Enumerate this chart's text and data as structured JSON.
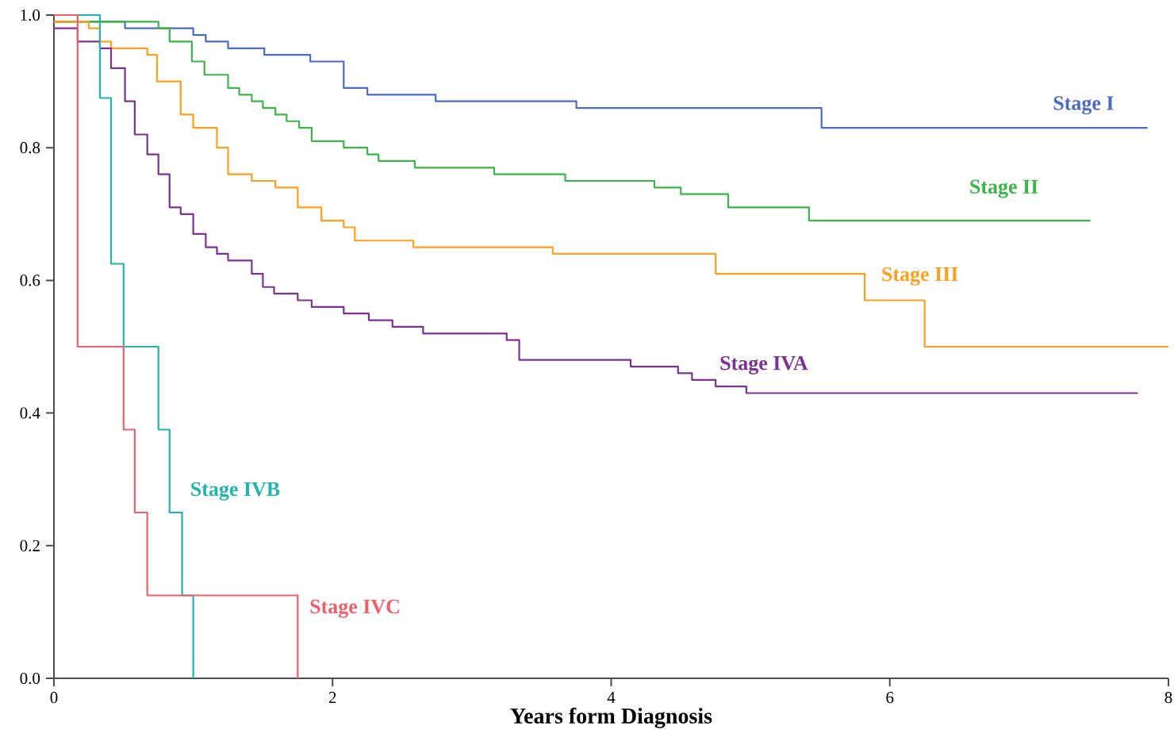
{
  "chart_data": {
    "type": "step",
    "xlabel": "Years form Diagnosis",
    "xlim": [
      0,
      8
    ],
    "ylim": [
      0,
      1
    ],
    "xticks": [
      0,
      2,
      4,
      6,
      8
    ],
    "yticks": [
      {
        "value": 0,
        "label": "0.0"
      },
      {
        "value": 0.2,
        "label": "0.2"
      },
      {
        "value": 0.4,
        "label": "0.4"
      },
      {
        "value": 0.6,
        "label": "0.6"
      },
      {
        "value": 0.8,
        "label": "0.8"
      },
      {
        "value": 1,
        "label": "1.0"
      }
    ],
    "grid": false,
    "series": [
      {
        "name": "Stage I",
        "color": "#4a6bbf",
        "x": [
          0,
          0.51,
          1.0,
          1.09,
          1.25,
          1.51,
          1.84,
          2.08,
          2.25,
          2.74,
          3.75,
          5.51,
          7.85
        ],
        "values": [
          0.99,
          0.98,
          0.97,
          0.96,
          0.95,
          0.94,
          0.93,
          0.89,
          0.88,
          0.87,
          0.86,
          0.83,
          0.83
        ]
      },
      {
        "name": "Stage II",
        "color": "#3cb44a",
        "x": [
          0,
          0.58,
          0.75,
          0.83,
          0.91,
          0.99,
          1.08,
          1.16,
          1.25,
          1.33,
          1.42,
          1.5,
          1.59,
          1.67,
          1.76,
          1.85,
          2.08,
          2.25,
          2.33,
          2.59,
          2.76,
          3.16,
          3.67,
          4.31,
          4.5,
          4.84,
          5.42,
          7.44
        ],
        "values": [
          0.99,
          0.99,
          0.98,
          0.96,
          0.96,
          0.93,
          0.91,
          0.91,
          0.89,
          0.88,
          0.87,
          0.86,
          0.85,
          0.84,
          0.83,
          0.81,
          0.8,
          0.79,
          0.78,
          0.77,
          0.77,
          0.76,
          0.75,
          0.74,
          0.73,
          0.71,
          0.69,
          0.69
        ]
      },
      {
        "name": "Stage III",
        "color": "#ff9f1c",
        "x": [
          0,
          0.25,
          0.33,
          0.41,
          0.67,
          0.74,
          0.91,
          1.0,
          1.17,
          1.25,
          1.42,
          1.59,
          1.75,
          1.92,
          2.08,
          2.16,
          2.58,
          3.58,
          4.75,
          5.82,
          6.25,
          8.0
        ],
        "values": [
          0.99,
          0.98,
          0.96,
          0.95,
          0.94,
          0.9,
          0.85,
          0.83,
          0.8,
          0.76,
          0.75,
          0.74,
          0.71,
          0.69,
          0.68,
          0.66,
          0.65,
          0.64,
          0.61,
          0.57,
          0.5,
          0.5
        ]
      },
      {
        "name": "Stage IVA",
        "color": "#7b3294",
        "x": [
          0,
          0.17,
          0.25,
          0.33,
          0.41,
          0.51,
          0.58,
          0.67,
          0.75,
          0.83,
          0.91,
          1.0,
          1.09,
          1.17,
          1.25,
          1.42,
          1.5,
          1.58,
          1.66,
          1.75,
          1.85,
          2.0,
          2.08,
          2.26,
          2.43,
          2.65,
          2.76,
          3.25,
          3.34,
          3.95,
          4.14,
          4.48,
          4.58,
          4.75,
          4.97,
          7.78
        ],
        "values": [
          0.98,
          0.96,
          0.96,
          0.95,
          0.92,
          0.87,
          0.82,
          0.79,
          0.76,
          0.71,
          0.7,
          0.67,
          0.65,
          0.64,
          0.63,
          0.61,
          0.59,
          0.58,
          0.58,
          0.57,
          0.56,
          0.56,
          0.55,
          0.54,
          0.53,
          0.52,
          0.52,
          0.51,
          0.48,
          0.48,
          0.47,
          0.46,
          0.45,
          0.44,
          0.43,
          0.43
        ]
      },
      {
        "name": "Stage IVB",
        "color": "#22b5b0",
        "x": [
          0,
          0.33,
          0.41,
          0.5,
          0.75,
          0.83,
          0.92,
          1.0
        ],
        "values": [
          1.0,
          0.875,
          0.625,
          0.5,
          0.375,
          0.25,
          0.125,
          0
        ]
      },
      {
        "name": "Stage IVC",
        "color": "#f0606a",
        "x": [
          0,
          0.17,
          0.5,
          0.58,
          0.67,
          1.75
        ],
        "values": [
          1.0,
          0.5,
          0.375,
          0.25,
          0.125,
          0
        ]
      }
    ]
  }
}
